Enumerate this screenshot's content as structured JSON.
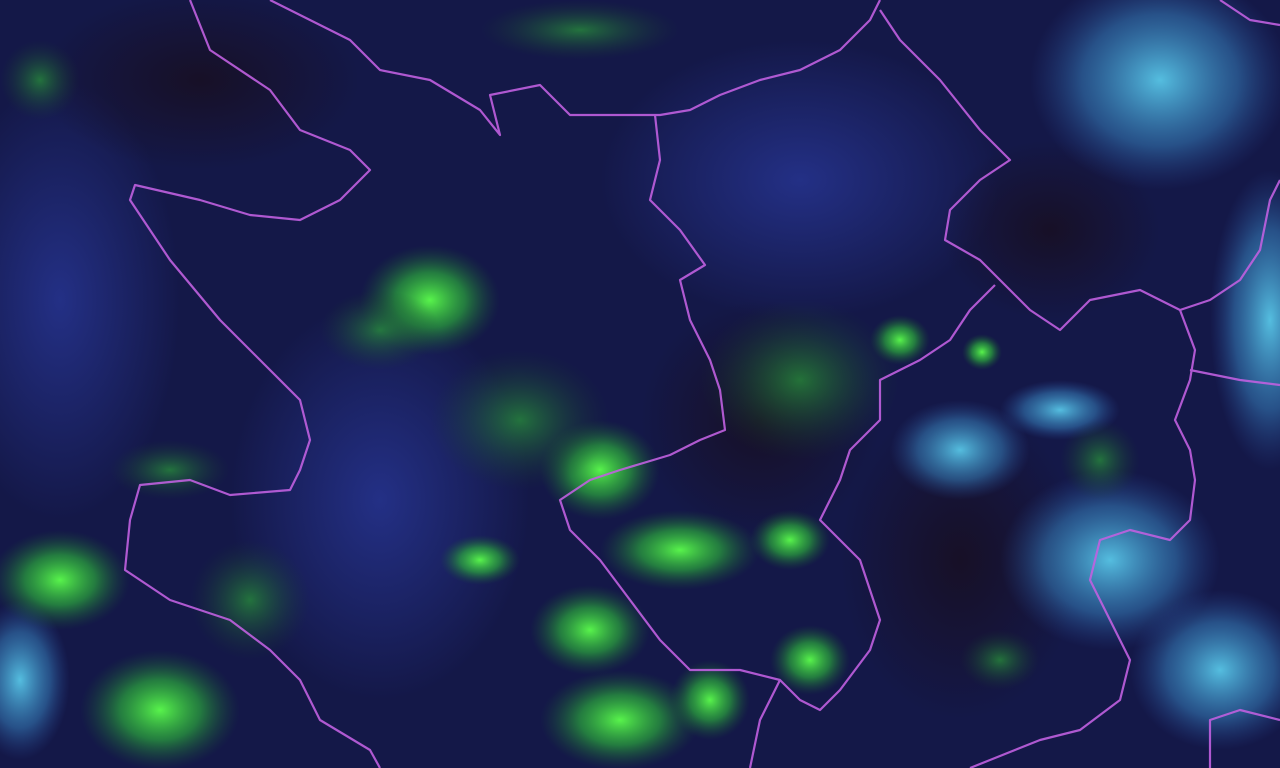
{
  "map": {
    "imagery": "satellite",
    "colors": {
      "background": "#141848",
      "dark_patch": "#1a1226",
      "vegetation_green": "#3cf03c",
      "cloud_cyan": "#4fc8e8",
      "border": "#c060e0"
    }
  }
}
